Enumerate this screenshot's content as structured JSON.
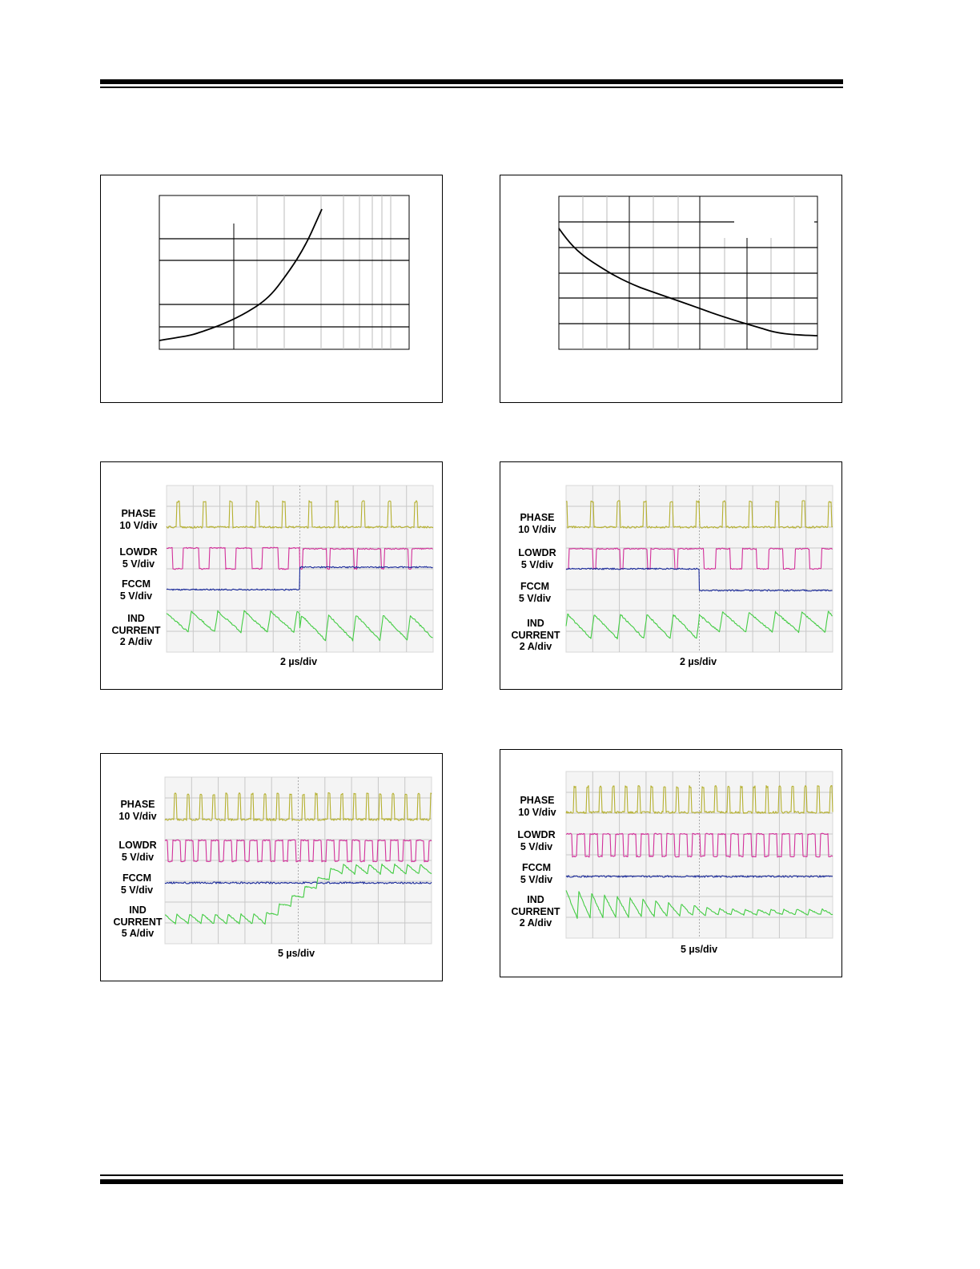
{
  "colors": {
    "phase": "#b5b030",
    "lowdr": "#d2309a",
    "fccm": "#1a2a9a",
    "ind": "#44cc44",
    "grid": "#c8c8c8",
    "screen": "#f4f4f4"
  },
  "charts": [
    {
      "type": "line",
      "trend": "rising",
      "title": "",
      "xlabel": "",
      "ylabel": ""
    },
    {
      "type": "line",
      "trend": "falling",
      "title": "",
      "xlabel": "",
      "ylabel": ""
    }
  ],
  "scopes": [
    {
      "labels": [
        {
          "name": "PHASE",
          "scale": "10 V/div"
        },
        {
          "name": "LOWDR",
          "scale": "5 V/div"
        },
        {
          "name": "FCCM",
          "scale": "5 V/div"
        },
        {
          "name": "IND",
          "name2": "CURRENT",
          "scale": "2 A/div"
        }
      ],
      "timebase": "2 µs/div"
    },
    {
      "labels": [
        {
          "name": "PHASE",
          "scale": "10 V/div"
        },
        {
          "name": "LOWDR",
          "scale": "5 V/div"
        },
        {
          "name": "FCCM",
          "scale": "5 V/div"
        },
        {
          "name": "IND",
          "name2": "CURRENT",
          "scale": "2 A/div"
        }
      ],
      "timebase": "2 µs/div"
    },
    {
      "labels": [
        {
          "name": "PHASE",
          "scale": "10 V/div"
        },
        {
          "name": "LOWDR",
          "scale": "5 V/div"
        },
        {
          "name": "FCCM",
          "scale": "5 V/div"
        },
        {
          "name": "IND",
          "name2": "CURRENT",
          "scale": "5 A/div"
        }
      ],
      "timebase": "5 µs/div"
    },
    {
      "labels": [
        {
          "name": "PHASE",
          "scale": "10 V/div"
        },
        {
          "name": "LOWDR",
          "scale": "5 V/div"
        },
        {
          "name": "FCCM",
          "scale": "5 V/div"
        },
        {
          "name": "IND",
          "name2": "CURRENT",
          "scale": "2 A/div"
        }
      ],
      "timebase": "5 µs/div"
    }
  ]
}
